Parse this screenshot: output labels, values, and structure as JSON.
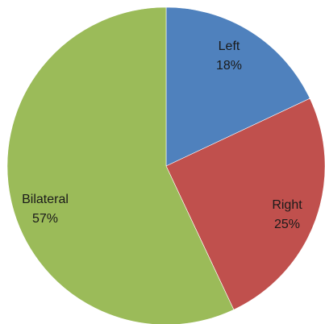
{
  "chart_data": {
    "type": "pie",
    "title": "",
    "categories": [
      "Left",
      "Right",
      "Bilateral"
    ],
    "values": [
      18,
      25,
      57
    ],
    "value_labels": [
      "18%",
      "25%",
      "57%"
    ],
    "colors": [
      "#4F81BD",
      "#C0504D",
      "#9BBB59"
    ],
    "start": "12 o'clock",
    "direction": "clockwise",
    "legend": "none",
    "labels_inside": true
  }
}
